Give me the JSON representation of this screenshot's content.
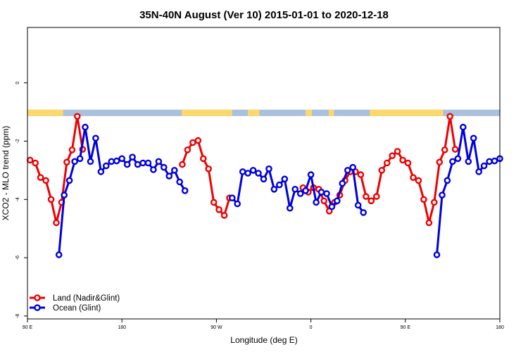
{
  "chart_data": {
    "type": "line",
    "title": "35N-40N August (Ver 10)   2015-01-01 to 2020-12-18",
    "xlabel": "Longitude (deg E)",
    "ylabel": "XCO2 - MLO trend (ppm)",
    "x_range_unwrapped": [
      90,
      540
    ],
    "x_ticks": [
      {
        "value": 90,
        "label": "90 E"
      },
      {
        "value": 180,
        "label": "180"
      },
      {
        "value": 270,
        "label": "90 W"
      },
      {
        "value": 360,
        "label": "0"
      },
      {
        "value": 450,
        "label": "90 E"
      },
      {
        "value": 540,
        "label": "180"
      }
    ],
    "ylim": [
      -8.1,
      1.9
    ],
    "y_ticks": [
      {
        "value": 0,
        "label": "0"
      },
      {
        "value": -2,
        "label": "-2"
      },
      {
        "value": -4,
        "label": "-4"
      },
      {
        "value": -6,
        "label": "-6"
      },
      {
        "value": -8,
        "label": "-8"
      }
    ],
    "land_ocean_mask": {
      "y_range": [
        -1.14,
        -0.92
      ],
      "ocean_color": "#a9c0de",
      "land_color": "#fbd96c",
      "land_segments": [
        [
          90,
          124
        ],
        [
          105,
          108
        ],
        [
          237,
          285
        ],
        [
          300,
          311
        ],
        [
          355,
          361
        ],
        [
          377,
          382
        ],
        [
          416,
          478
        ],
        [
          476,
          486
        ]
      ]
    },
    "legend": {
      "position": "bottom-left",
      "entries": [
        "Land (Nadir&Glint)",
        "Ocean (Glint)"
      ]
    },
    "colors": {
      "land": "#ee0000",
      "ocean": "#0000dd"
    },
    "series": [
      {
        "name": "Land (Nadir&Glint)",
        "segments": [
          [
            [
              92.5,
              -2.65
            ],
            [
              97.5,
              -2.75
            ],
            [
              102.5,
              -3.25
            ],
            [
              107.5,
              -3.35
            ],
            [
              112.5,
              -4.0
            ],
            [
              117.5,
              -4.8
            ],
            [
              122.5,
              -4.1
            ],
            [
              127.5,
              -2.72
            ],
            [
              132.5,
              -2.3
            ],
            [
              137.5,
              -1.15
            ],
            [
              142.5,
              -2.28
            ]
          ],
          [
            [
              237.5,
              -2.8
            ],
            [
              242.5,
              -2.3
            ],
            [
              247.5,
              -2.05
            ],
            [
              252.5,
              -1.98
            ],
            [
              257.5,
              -2.6
            ],
            [
              262.5,
              -2.95
            ],
            [
              267.5,
              -4.1
            ],
            [
              272.5,
              -4.35
            ],
            [
              277.5,
              -4.55
            ],
            [
              282.5,
              -3.95
            ]
          ],
          [
            [
              352.5,
              -3.6
            ],
            [
              357.5,
              -3.75
            ],
            [
              362.5,
              -3.6
            ],
            [
              367.5,
              -3.65
            ],
            [
              372.5,
              -4.05
            ],
            [
              377.5,
              -4.4
            ],
            [
              382.5,
              -4.1
            ],
            [
              387.5,
              -3.85
            ],
            [
              392.5,
              -3.35
            ],
            [
              397.5,
              -3.05
            ],
            [
              402.5,
              -3.05
            ],
            [
              407.5,
              -3.15
            ],
            [
              412.5,
              -3.9
            ],
            [
              417.5,
              -4.05
            ],
            [
              422.5,
              -3.9
            ],
            [
              427.5,
              -3.0
            ],
            [
              432.5,
              -2.75
            ],
            [
              437.5,
              -2.5
            ],
            [
              442.5,
              -2.35
            ],
            [
              447.5,
              -2.65
            ],
            [
              452.5,
              -2.75
            ],
            [
              457.5,
              -3.25
            ],
            [
              462.5,
              -3.35
            ],
            [
              467.5,
              -4.0
            ],
            [
              472.5,
              -4.8
            ],
            [
              477.5,
              -4.1
            ],
            [
              482.5,
              -2.72
            ],
            [
              487.5,
              -2.3
            ],
            [
              492.5,
              -1.15
            ],
            [
              497.5,
              -2.28
            ]
          ]
        ]
      },
      {
        "name": "Ocean (Glint)",
        "segments": [
          [
            [
              120,
              -5.9
            ],
            [
              125,
              -3.85
            ],
            [
              130,
              -3.35
            ],
            [
              135,
              -2.7
            ],
            [
              140,
              -2.6
            ],
            [
              145,
              -1.52
            ],
            [
              150,
              -2.7
            ],
            [
              155,
              -1.9
            ],
            [
              160,
              -3.05
            ],
            [
              165,
              -2.85
            ],
            [
              170,
              -2.7
            ],
            [
              175,
              -2.68
            ],
            [
              180,
              -2.6
            ],
            [
              185,
              -2.8
            ],
            [
              190,
              -2.55
            ],
            [
              195,
              -2.8
            ],
            [
              200,
              -2.75
            ],
            [
              205,
              -2.75
            ],
            [
              210,
              -2.98
            ],
            [
              215,
              -2.7
            ],
            [
              220,
              -2.9
            ],
            [
              225,
              -3.2
            ],
            [
              230,
              -3.0
            ],
            [
              235,
              -3.4
            ],
            [
              240,
              -3.7
            ]
          ],
          [
            [
              285,
              -3.95
            ],
            [
              290,
              -4.15
            ],
            [
              295,
              -3.05
            ],
            [
              300,
              -3.1
            ],
            [
              305,
              -3.0
            ],
            [
              310,
              -3.1
            ],
            [
              315,
              -3.3
            ],
            [
              320,
              -2.95
            ],
            [
              325,
              -3.65
            ],
            [
              330,
              -3.5
            ],
            [
              335,
              -3.3
            ],
            [
              340,
              -4.3
            ],
            [
              345,
              -3.65
            ],
            [
              350,
              -3.8
            ],
            [
              355,
              -3.7
            ],
            [
              360,
              -3.15
            ],
            [
              365,
              -4.1
            ],
            [
              370,
              -3.75
            ],
            [
              375,
              -3.8
            ],
            [
              380,
              -4.25
            ],
            [
              385,
              -4.05
            ],
            [
              390,
              -3.45
            ],
            [
              395,
              -3.0
            ],
            [
              400,
              -2.9
            ],
            [
              405,
              -4.2
            ],
            [
              410,
              -4.45
            ]
          ],
          [
            [
              480,
              -5.9
            ],
            [
              485,
              -3.85
            ],
            [
              490,
              -3.35
            ],
            [
              495,
              -2.7
            ],
            [
              500,
              -2.6
            ],
            [
              505,
              -1.52
            ],
            [
              510,
              -2.7
            ],
            [
              515,
              -1.9
            ],
            [
              520,
              -3.05
            ],
            [
              525,
              -2.85
            ],
            [
              530,
              -2.7
            ],
            [
              535,
              -2.68
            ],
            [
              540,
              -2.6
            ]
          ]
        ]
      }
    ]
  }
}
